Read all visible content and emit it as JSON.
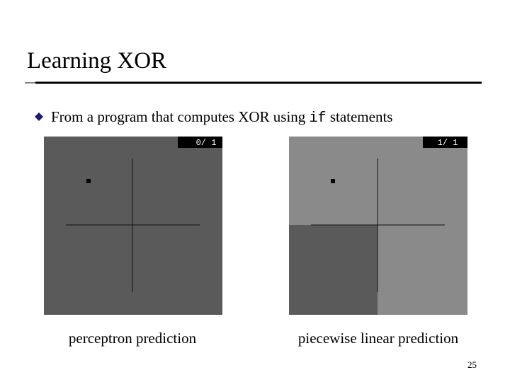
{
  "header": {
    "title": "Learning XOR"
  },
  "bullet": {
    "text_before": "From a program that computes XOR using",
    "code": "if",
    "text_after": "statements"
  },
  "panels": [
    {
      "counter": "0/ 1",
      "caption": "perceptron prediction"
    },
    {
      "counter": "1/ 1",
      "caption": "piecewise linear prediction"
    }
  ],
  "footer": {
    "page_number": "25"
  }
}
